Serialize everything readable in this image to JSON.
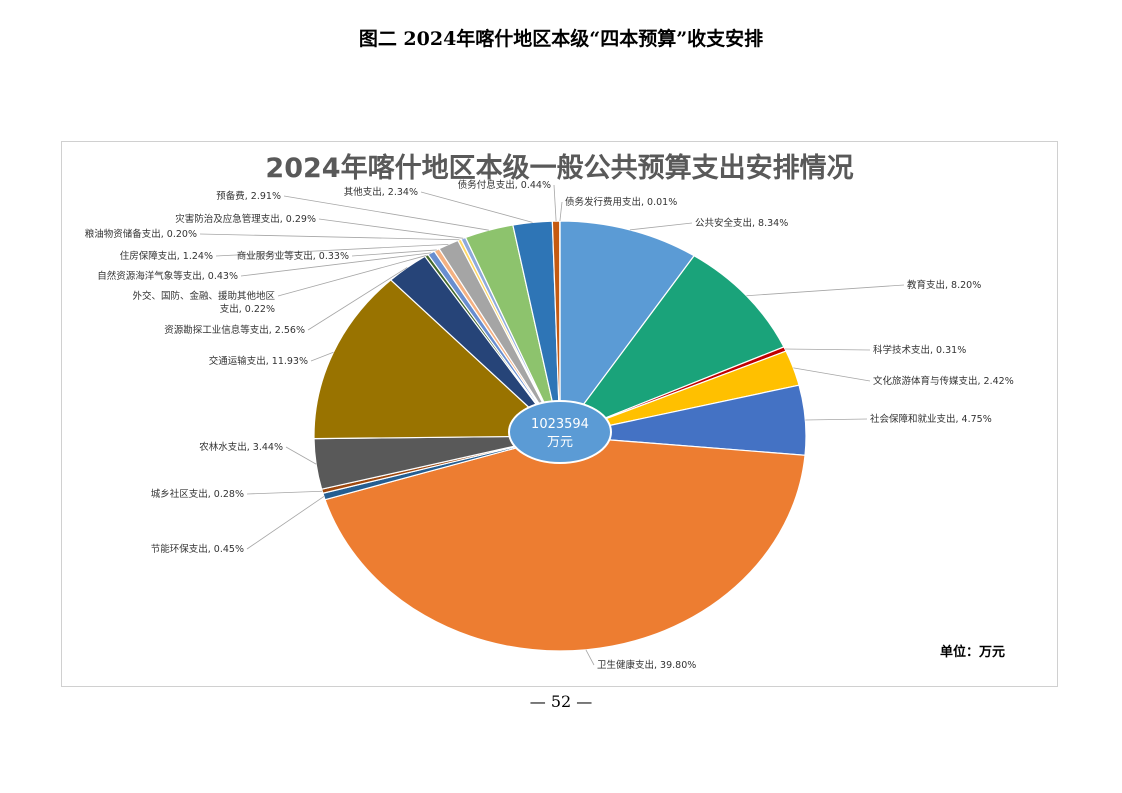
{
  "page": {
    "title": "图二 2024年喀什地区本级“四本预算”收支安排",
    "page_number": "— 52 —"
  },
  "chart_data": {
    "type": "pie",
    "title": "2024年喀什地区本级一般公共预算支出安排情况",
    "unit_label": "单位：万元",
    "center_value": "1023594",
    "center_unit": "万元",
    "slices": [
      {
        "name": "公共安全支出",
        "percent": 8.34,
        "label": "公共安全支出, 8.34%",
        "color": "#5b9bd5"
      },
      {
        "name": "教育支出",
        "percent": 8.2,
        "label": "教育支出, 8.20%",
        "color": "#1aa37a"
      },
      {
        "name": "科学技术支出",
        "percent": 0.31,
        "label": "科学技术支出, 0.31%",
        "color": "#c00000"
      },
      {
        "name": "文化旅游体育与传媒支出",
        "percent": 2.42,
        "label": "文化旅游体育与传媒支出, 2.42%",
        "color": "#ffc000"
      },
      {
        "name": "社会保障和就业支出",
        "percent": 4.75,
        "label": "社会保障和就业支出, 4.75%",
        "color": "#4472c4"
      },
      {
        "name": "卫生健康支出",
        "percent": 39.8,
        "label": "卫生健康支出, 39.80%",
        "color": "#ed7d31"
      },
      {
        "name": "节能环保支出",
        "percent": 0.45,
        "label": "节能环保支出, 0.45%",
        "color": "#255e91"
      },
      {
        "name": "城乡社区支出",
        "percent": 0.28,
        "label": "城乡社区支出, 0.28%",
        "color": "#9e480e"
      },
      {
        "name": "农林水支出",
        "percent": 3.44,
        "label": "农林水支出, 3.44%",
        "color": "#595959"
      },
      {
        "name": "交通运输支出",
        "percent": 11.93,
        "label": "交通运输支出, 11.93%",
        "color": "#997300"
      },
      {
        "name": "资源勘探工业信息等支出",
        "percent": 2.56,
        "label": "资源勘探工业信息等支出, 2.56%",
        "color": "#264478"
      },
      {
        "name": "外交、国防、金融、援助其他地区支出",
        "percent": 0.22,
        "label": "外交、国防、金融、援助其他地区支出, 0.22%",
        "label_lines": [
          "外交、国防、金融、援助其他地区",
          "支出, 0.22%"
        ],
        "color": "#43682b"
      },
      {
        "name": "自然资源海洋气象等支出",
        "percent": 0.43,
        "label": "自然资源海洋气象等支出, 0.43%",
        "color": "#698ed0"
      },
      {
        "name": "商业服务业等支出",
        "percent": 0.33,
        "label": "商业服务业等支出, 0.33%",
        "color": "#f4b183"
      },
      {
        "name": "住房保障支出",
        "percent": 1.24,
        "label": "住房保障支出, 1.24%",
        "color": "#a5a5a5"
      },
      {
        "name": "粮油物资储备支出",
        "percent": 0.2,
        "label": "粮油物资储备支出, 0.20%",
        "color": "#ffd966"
      },
      {
        "name": "灾害防治及应急管理支出",
        "percent": 0.29,
        "label": "灾害防治及应急管理支出, 0.29%",
        "color": "#8faadc"
      },
      {
        "name": "预备费",
        "percent": 2.91,
        "label": "预备费, 2.91%",
        "color": "#8dc36d"
      },
      {
        "name": "其他支出",
        "percent": 2.34,
        "label": "其他支出, 2.34%",
        "color": "#2e75b6"
      },
      {
        "name": "债务付息支出",
        "percent": 0.44,
        "label": "债务付息支出, 0.44%",
        "color": "#c55a11"
      },
      {
        "name": "债务发行费用支出",
        "percent": 0.01,
        "label": "债务发行费用支出, 0.01%",
        "color": "#7f6000"
      }
    ]
  }
}
